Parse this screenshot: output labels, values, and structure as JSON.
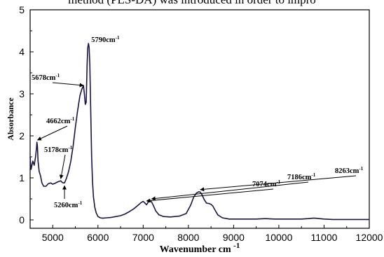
{
  "page": {
    "header_text": "method (PLS-DA) was introduced in order to impro"
  },
  "chart_data": {
    "type": "line",
    "title": "",
    "xlabel": "Wavenumber cm",
    "xlabel_sup": "-1",
    "ylabel": "Absorbance",
    "xlim": [
      4500,
      12000
    ],
    "ylim": [
      -0.2,
      5
    ],
    "x_ticks": [
      5000,
      6000,
      7000,
      8000,
      9000,
      10000,
      11000,
      12000
    ],
    "y_ticks": [
      0,
      1,
      2,
      3,
      4,
      5
    ],
    "grid": false,
    "legend": "none",
    "series": [
      {
        "color": "#1a1446",
        "x": [
          4500,
          4520,
          4560,
          4590,
          4620,
          4640,
          4650,
          4662,
          4675,
          4700,
          4730,
          4760,
          4800,
          4850,
          4900,
          4950,
          5000,
          5050,
          5100,
          5150,
          5178,
          5200,
          5230,
          5260,
          5300,
          5350,
          5400,
          5450,
          5500,
          5550,
          5600,
          5640,
          5660,
          5678,
          5700,
          5720,
          5740,
          5760,
          5775,
          5790,
          5805,
          5820,
          5840,
          5860,
          5880,
          5900,
          5930,
          5960,
          6000,
          6050,
          6100,
          6200,
          6300,
          6400,
          6500,
          6600,
          6700,
          6800,
          6900,
          6950,
          7000,
          7040,
          7074,
          7110,
          7140,
          7186,
          7230,
          7280,
          7350,
          7450,
          7600,
          7800,
          7950,
          8050,
          8120,
          8180,
          8230,
          8263,
          8300,
          8350,
          8400,
          8450,
          8500,
          8540,
          8580,
          8650,
          8750,
          8900,
          9100,
          9300,
          9500,
          9700,
          9900,
          10100,
          10300,
          10500,
          10650,
          10750,
          10800,
          10900,
          11000,
          11200,
          11500,
          11800,
          12000
        ],
        "y": [
          1.5,
          1.2,
          1.4,
          1.3,
          1.5,
          1.7,
          1.85,
          1.75,
          1.4,
          1.15,
          1.05,
          0.88,
          0.8,
          0.8,
          0.86,
          0.88,
          0.85,
          0.87,
          0.9,
          0.92,
          0.93,
          0.9,
          0.88,
          0.88,
          0.98,
          1.15,
          1.4,
          1.75,
          2.2,
          2.6,
          2.95,
          3.1,
          3.15,
          3.2,
          3.0,
          2.75,
          2.8,
          3.7,
          4.1,
          4.2,
          4.1,
          3.7,
          2.6,
          1.5,
          0.9,
          0.55,
          0.3,
          0.17,
          0.08,
          0.05,
          0.04,
          0.05,
          0.06,
          0.08,
          0.1,
          0.14,
          0.2,
          0.27,
          0.36,
          0.41,
          0.44,
          0.4,
          0.36,
          0.42,
          0.45,
          0.43,
          0.33,
          0.21,
          0.12,
          0.08,
          0.07,
          0.09,
          0.15,
          0.35,
          0.55,
          0.64,
          0.67,
          0.66,
          0.6,
          0.48,
          0.4,
          0.39,
          0.37,
          0.33,
          0.25,
          0.12,
          0.05,
          0.02,
          0.02,
          0.02,
          0.02,
          0.03,
          0.02,
          0.02,
          0.02,
          0.02,
          0.03,
          0.04,
          0.04,
          0.03,
          0.02,
          0.01,
          0.01,
          0.01,
          0.01
        ]
      }
    ],
    "annotations": [
      {
        "label": "5790cm",
        "sup": "-1",
        "x": 5790,
        "y": 4.2
      },
      {
        "label": "5678cm",
        "sup": "-1",
        "x": 5678,
        "y": 3.15
      },
      {
        "label": "4662cm",
        "sup": "-1",
        "x": 4662,
        "y": 1.85
      },
      {
        "label": "5178cm",
        "sup": "-1",
        "x": 5178,
        "y": 0.93
      },
      {
        "label": "5260cm",
        "sup": "-1",
        "x": 5260,
        "y": 0.88
      },
      {
        "label": "7074cm",
        "sup": "-1",
        "x": 7074,
        "y": 0.4
      },
      {
        "label": "7186cm",
        "sup": "-1",
        "x": 7186,
        "y": 0.45
      },
      {
        "label": "8263cm",
        "sup": "-1",
        "x": 8263,
        "y": 0.67
      }
    ]
  }
}
